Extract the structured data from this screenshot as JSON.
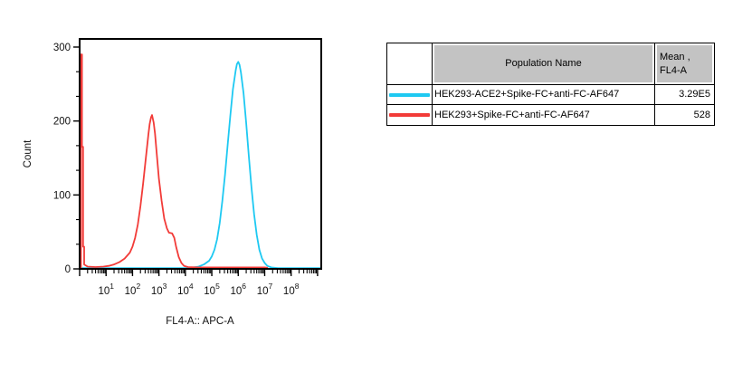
{
  "chart_data": {
    "type": "line",
    "subtype": "flow-cytometry-histogram-overlay",
    "title": "",
    "xlabel": "FL4-A:: APC-A",
    "ylabel": "Count",
    "x_scale": "log10",
    "x_log_range": [
      0,
      9.14
    ],
    "y_range": [
      0,
      311
    ],
    "y_ticks": [
      0,
      100,
      200,
      300
    ],
    "y_minor_divisions": 3,
    "x_tick_base": "10",
    "x_tick_exponents": [
      1,
      2,
      3,
      4,
      5,
      6,
      7,
      8
    ],
    "grid": false,
    "legend_position": "table-right",
    "series": [
      {
        "name": "HEK293-ACE2+Spike-FC+anti-FC-AF647",
        "color": "#1ec9f2",
        "mean_fl4a": "3.29E5",
        "points": [
          [
            0.02,
            1
          ],
          [
            0.5,
            1
          ],
          [
            1.0,
            1
          ],
          [
            1.5,
            1
          ],
          [
            2.0,
            1
          ],
          [
            2.5,
            1
          ],
          [
            3.0,
            1
          ],
          [
            3.5,
            1
          ],
          [
            4.0,
            1
          ],
          [
            4.3,
            2
          ],
          [
            4.5,
            3
          ],
          [
            4.7,
            6
          ],
          [
            4.9,
            11
          ],
          [
            5.0,
            17
          ],
          [
            5.1,
            26
          ],
          [
            5.2,
            40
          ],
          [
            5.3,
            62
          ],
          [
            5.4,
            92
          ],
          [
            5.5,
            128
          ],
          [
            5.6,
            168
          ],
          [
            5.7,
            207
          ],
          [
            5.8,
            243
          ],
          [
            5.9,
            268
          ],
          [
            5.95,
            277
          ],
          [
            6.0,
            280
          ],
          [
            6.05,
            276
          ],
          [
            6.1,
            266
          ],
          [
            6.2,
            238
          ],
          [
            6.3,
            198
          ],
          [
            6.4,
            152
          ],
          [
            6.5,
            110
          ],
          [
            6.6,
            74
          ],
          [
            6.7,
            46
          ],
          [
            6.8,
            26
          ],
          [
            6.9,
            14
          ],
          [
            7.0,
            8
          ],
          [
            7.1,
            4
          ],
          [
            7.25,
            2
          ],
          [
            7.5,
            1
          ],
          [
            8.0,
            1
          ],
          [
            8.6,
            1
          ],
          [
            9.13,
            1
          ]
        ]
      },
      {
        "name": "HEK293+Spike-FC+anti-FC-AF647",
        "color": "#f23b38",
        "mean_fl4a": "528",
        "points": [
          [
            0.05,
            0
          ],
          [
            0.05,
            290
          ],
          [
            0.09,
            290
          ],
          [
            0.09,
            165
          ],
          [
            0.13,
            165
          ],
          [
            0.13,
            30
          ],
          [
            0.17,
            30
          ],
          [
            0.17,
            6
          ],
          [
            0.3,
            3
          ],
          [
            0.6,
            2.5
          ],
          [
            0.9,
            3
          ],
          [
            1.1,
            4
          ],
          [
            1.3,
            6
          ],
          [
            1.5,
            9
          ],
          [
            1.7,
            14
          ],
          [
            1.9,
            22
          ],
          [
            2.0,
            30
          ],
          [
            2.1,
            42
          ],
          [
            2.2,
            60
          ],
          [
            2.3,
            85
          ],
          [
            2.4,
            115
          ],
          [
            2.5,
            148
          ],
          [
            2.6,
            182
          ],
          [
            2.65,
            196
          ],
          [
            2.7,
            205
          ],
          [
            2.74,
            208
          ],
          [
            2.8,
            198
          ],
          [
            2.85,
            183
          ],
          [
            2.9,
            163
          ],
          [
            3.0,
            122
          ],
          [
            3.1,
            92
          ],
          [
            3.2,
            68
          ],
          [
            3.3,
            55
          ],
          [
            3.38,
            49
          ],
          [
            3.5,
            48
          ],
          [
            3.58,
            42
          ],
          [
            3.65,
            30
          ],
          [
            3.75,
            16
          ],
          [
            3.85,
            8
          ],
          [
            3.95,
            4
          ],
          [
            4.1,
            2.5
          ],
          [
            4.5,
            2
          ],
          [
            5.0,
            2
          ],
          [
            5.5,
            2
          ],
          [
            6.0,
            2
          ],
          [
            6.5,
            2
          ],
          [
            7.0,
            2
          ],
          [
            7.1,
            1.5
          ]
        ]
      }
    ]
  },
  "table": {
    "headers": {
      "swatch": "",
      "population": "Population Name",
      "mean": "Mean ,\nFL4-A"
    },
    "rows": [
      {
        "name": "HEK293-ACE2+Spike-FC+anti-FC-AF647",
        "mean": "3.29E5",
        "color": "#1ec9f2"
      },
      {
        "name": "HEK293+Spike-FC+anti-FC-AF647",
        "mean": "528",
        "color": "#f23b38"
      }
    ]
  },
  "colors": {
    "cyan_series": "#1ec9f2",
    "red_series": "#f23b38",
    "table_header_bg": "#c3c3c3",
    "axis": "#000000"
  }
}
